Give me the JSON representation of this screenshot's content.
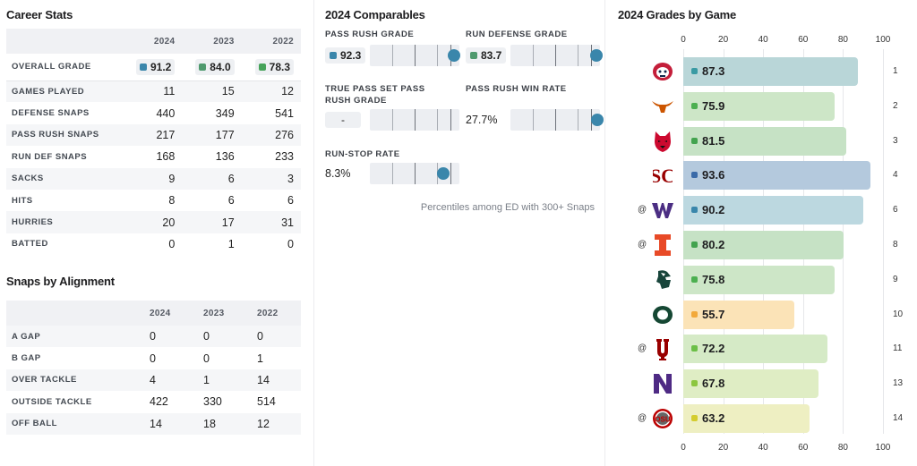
{
  "career": {
    "title": "Career Stats",
    "years": [
      "2024",
      "2023",
      "2022"
    ],
    "grade_row": {
      "label": "OVERALL GRADE",
      "values": [
        "91.2",
        "84.0",
        "78.3"
      ],
      "colors": [
        "#3a86ab",
        "#4f9a6e",
        "#46a35a"
      ]
    },
    "rows": [
      {
        "label": "GAMES PLAYED",
        "values": [
          "11",
          "15",
          "12"
        ]
      },
      {
        "label": "DEFENSE SNAPS",
        "values": [
          "440",
          "349",
          "541"
        ]
      },
      {
        "label": "PASS RUSH SNAPS",
        "values": [
          "217",
          "177",
          "276"
        ]
      },
      {
        "label": "RUN DEF SNAPS",
        "values": [
          "168",
          "136",
          "233"
        ]
      },
      {
        "label": "SACKS",
        "values": [
          "9",
          "6",
          "3"
        ]
      },
      {
        "label": "HITS",
        "values": [
          "8",
          "6",
          "6"
        ]
      },
      {
        "label": "HURRIES",
        "values": [
          "20",
          "17",
          "31"
        ]
      },
      {
        "label": "BATTED",
        "values": [
          "0",
          "1",
          "0"
        ]
      }
    ]
  },
  "alignment": {
    "title": "Snaps by Alignment",
    "years": [
      "2024",
      "2023",
      "2022"
    ],
    "rows": [
      {
        "label": "A GAP",
        "values": [
          "0",
          "0",
          "0"
        ]
      },
      {
        "label": "B GAP",
        "values": [
          "0",
          "0",
          "1"
        ]
      },
      {
        "label": "OVER TACKLE",
        "values": [
          "4",
          "1",
          "14"
        ]
      },
      {
        "label": "OUTSIDE TACKLE",
        "values": [
          "422",
          "330",
          "514"
        ]
      },
      {
        "label": "OFF BALL",
        "values": [
          "14",
          "18",
          "12"
        ]
      }
    ]
  },
  "comparables": {
    "title": "2024 Comparables",
    "footnote": "Percentiles among ED with 300+ Snaps",
    "items": [
      {
        "label": "PASS RUSH GRADE",
        "value": "92.3",
        "badge": true,
        "color": "#3a86ab",
        "percentile": 0.94
      },
      {
        "label": "RUN DEFENSE GRADE",
        "value": "83.7",
        "badge": true,
        "color": "#4f9a6e",
        "percentile": 0.96
      },
      {
        "label": "TRUE PASS SET PASS RUSH GRADE",
        "value": "-",
        "badge": false,
        "dash": true,
        "percentile": null
      },
      {
        "label": "PASS RUSH WIN RATE",
        "value": "27.7%",
        "badge": false,
        "percentile": 0.97
      },
      {
        "label": "RUN-STOP RATE",
        "value": "8.3%",
        "badge": false,
        "percentile": 0.82
      }
    ]
  },
  "games": {
    "title": "2024 Grades by Game",
    "axis": [
      0,
      20,
      40,
      60,
      80,
      100
    ],
    "rows": [
      {
        "opponent_logo": "fresno-state-bulldog-icon",
        "away": false,
        "grade": 87.3,
        "label": "87.3",
        "week": "1",
        "bar_color": "#b9d6d8",
        "sq_color": "#3a9aa3"
      },
      {
        "opponent_logo": "texas-longhorn-icon",
        "away": false,
        "grade": 75.9,
        "label": "75.9",
        "week": "2",
        "bar_color": "#cde6c7",
        "sq_color": "#4caf50"
      },
      {
        "opponent_logo": "arkansas-state-wolf-icon",
        "away": false,
        "grade": 81.5,
        "label": "81.5",
        "week": "3",
        "bar_color": "#c6e2c5",
        "sq_color": "#43a34f"
      },
      {
        "opponent_logo": "usc-sc-icon",
        "away": false,
        "grade": 93.6,
        "label": "93.6",
        "week": "4",
        "bar_color": "#b4c9dd",
        "sq_color": "#3a6aa8"
      },
      {
        "opponent_logo": "washington-w-icon",
        "away": true,
        "grade": 90.2,
        "label": "90.2",
        "week": "6",
        "bar_color": "#bcd8e0",
        "sq_color": "#3a86ab"
      },
      {
        "opponent_logo": "illinois-i-icon",
        "away": true,
        "grade": 80.2,
        "label": "80.2",
        "week": "8",
        "bar_color": "#c6e2c5",
        "sq_color": "#43a34f"
      },
      {
        "opponent_logo": "michigan-state-spartan-icon",
        "away": false,
        "grade": 75.8,
        "label": "75.8",
        "week": "9",
        "bar_color": "#cde6c7",
        "sq_color": "#4caf50"
      },
      {
        "opponent_logo": "oregon-o-icon",
        "away": false,
        "grade": 55.7,
        "label": "55.7",
        "week": "10",
        "bar_color": "#fbe3b7",
        "sq_color": "#f2a93b"
      },
      {
        "opponent_logo": "indiana-iu-icon",
        "away": true,
        "grade": 72.2,
        "label": "72.2",
        "week": "11",
        "bar_color": "#d5eac6",
        "sq_color": "#6bbf47"
      },
      {
        "opponent_logo": "northwestern-n-icon",
        "away": false,
        "grade": 67.8,
        "label": "67.8",
        "week": "13",
        "bar_color": "#dfedc4",
        "sq_color": "#8cc63f"
      },
      {
        "opponent_logo": "ohio-state-icon",
        "away": true,
        "grade": 63.2,
        "label": "63.2",
        "week": "14",
        "bar_color": "#eeefc2",
        "sq_color": "#d4cc2e"
      }
    ],
    "away_symbol": "@"
  }
}
